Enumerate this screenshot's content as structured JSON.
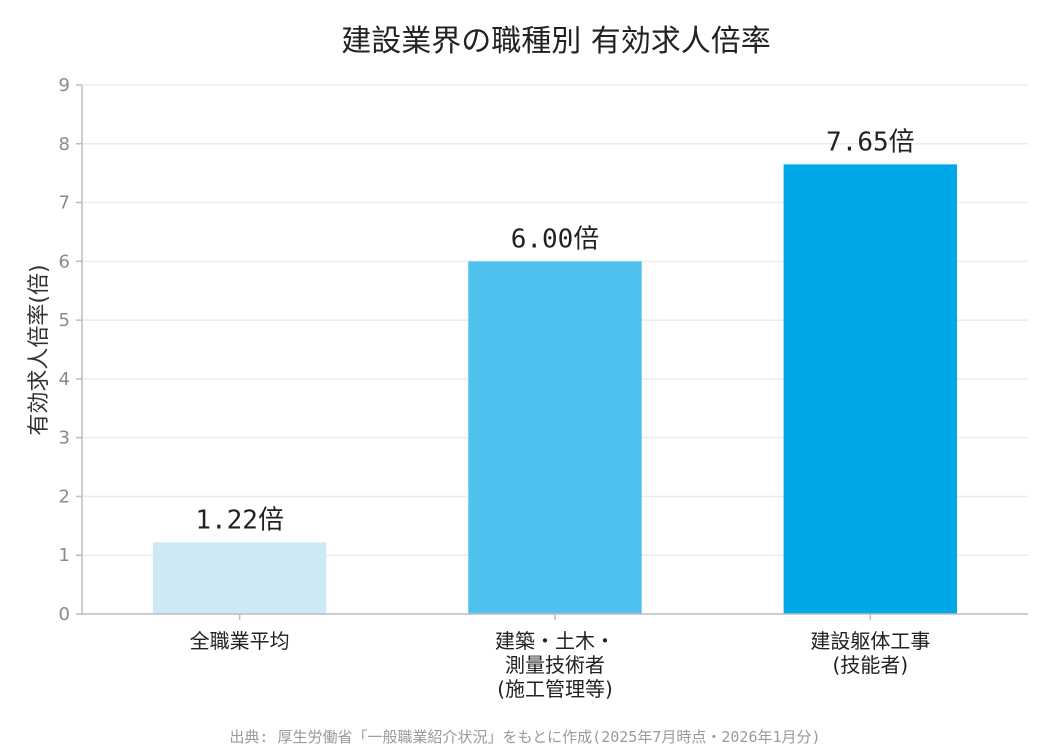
{
  "chart_data": {
    "type": "bar",
    "title": "建設業界の職種別 有効求人倍率",
    "ylabel": "有効求人倍率(倍)",
    "xlabel": "",
    "ylim": [
      0,
      9
    ],
    "yticks": [
      "0",
      "1",
      "2",
      "3",
      "4",
      "5",
      "6",
      "7",
      "8",
      "9"
    ],
    "grid": true,
    "categories": [
      [
        "全職業平均"
      ],
      [
        "建築・土木・",
        "測量技術者",
        "(施工管理等)"
      ],
      [
        "建設躯体工事",
        "(技能者)"
      ]
    ],
    "values": [
      1.22,
      6.0,
      7.65
    ],
    "data_labels": [
      "1.22倍",
      "6.00倍",
      "7.65倍"
    ],
    "bar_colors": [
      "#cde9f5",
      "#4fc1ef",
      "#00a8e8"
    ],
    "source": "出典: 厚生労働省「一般職業紹介状況」をもとに作成(2025年7月時点・2026年1月分)"
  }
}
